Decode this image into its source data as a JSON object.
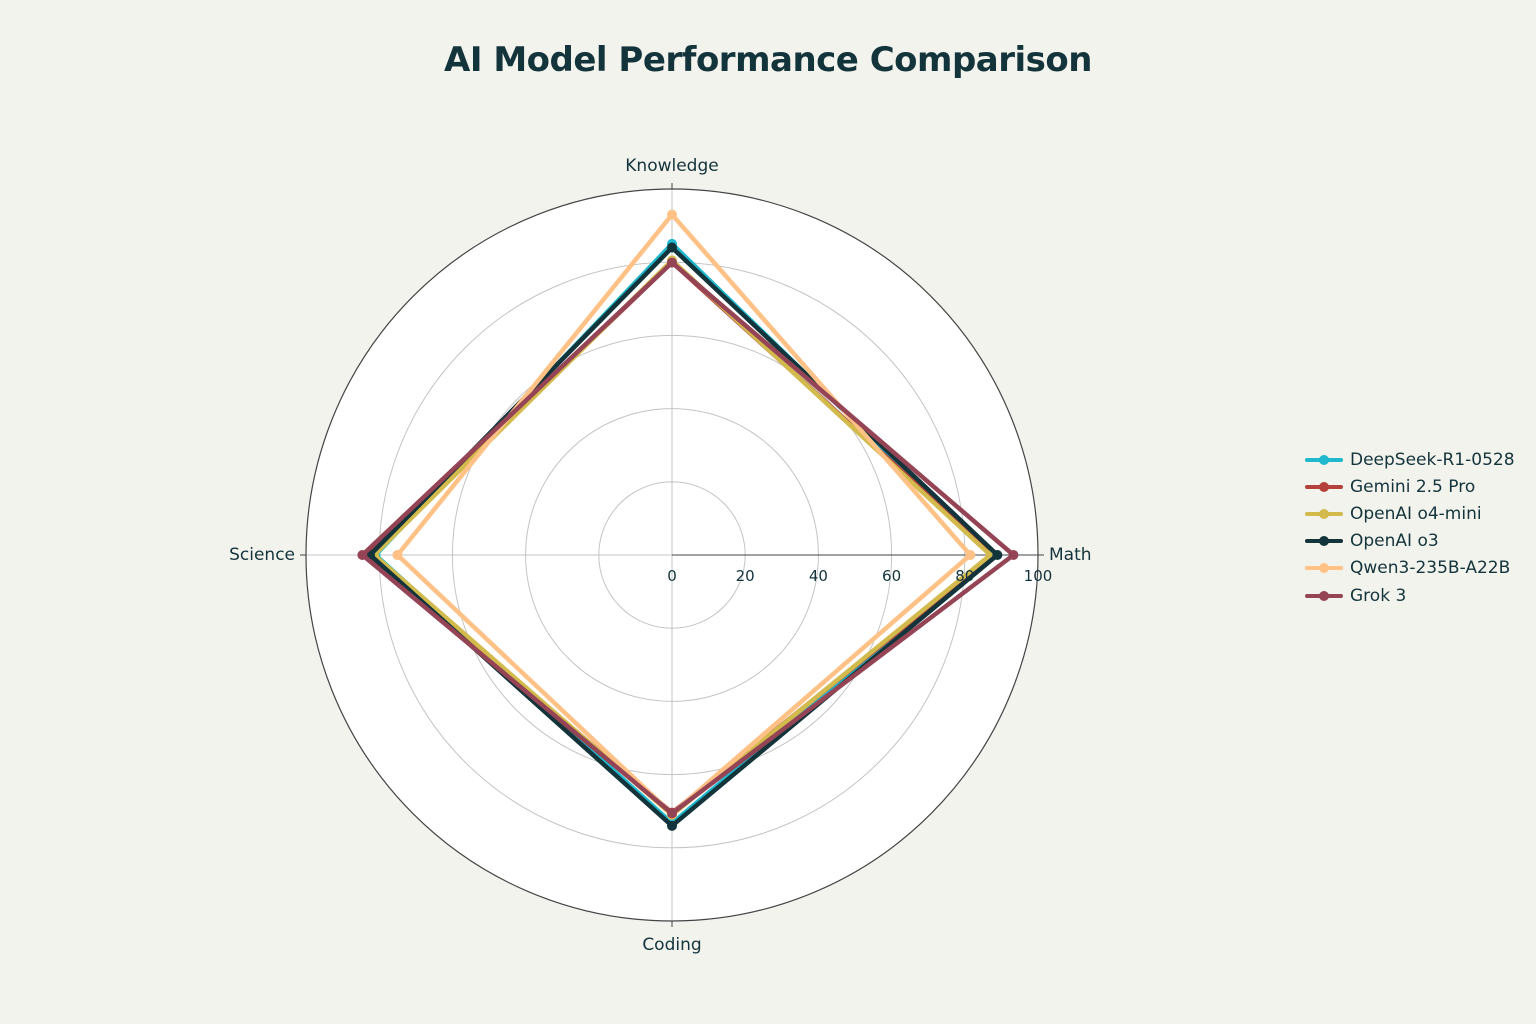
{
  "title": "AI Model Performance Comparison",
  "chart_data": {
    "type": "radar",
    "title": "AI Model Performance Comparison",
    "axes": [
      "Knowledge",
      "Math",
      "Coding",
      "Science"
    ],
    "radial_range": [
      0,
      100
    ],
    "radial_ticks": [
      "0",
      "20",
      "40",
      "60",
      "80",
      "100"
    ],
    "grid": true,
    "legend_position": "right",
    "series": [
      {
        "name": "DeepSeek-R1-0528",
        "color": "#1fb8cd",
        "values": [
          85.0,
          87.5,
          73.3,
          81.0
        ]
      },
      {
        "name": "Gemini 2.5 Pro",
        "color": "#b4413c",
        "values": [
          80.0,
          88.0,
          70.4,
          83.0
        ]
      },
      {
        "name": "OpenAI o4-mini",
        "color": "#d2ba4c",
        "values": [
          80.5,
          87.0,
          71.0,
          81.4
        ]
      },
      {
        "name": "OpenAI o3",
        "color": "#13343b",
        "values": [
          84.0,
          88.9,
          74.0,
          82.5
        ]
      },
      {
        "name": "Qwen3-235B-A22B",
        "color": "#ffc185",
        "values": [
          93.0,
          81.5,
          70.7,
          75.0
        ]
      },
      {
        "name": "Grok 3",
        "color": "#944454",
        "values": [
          79.9,
          93.3,
          70.6,
          84.6
        ]
      }
    ]
  }
}
